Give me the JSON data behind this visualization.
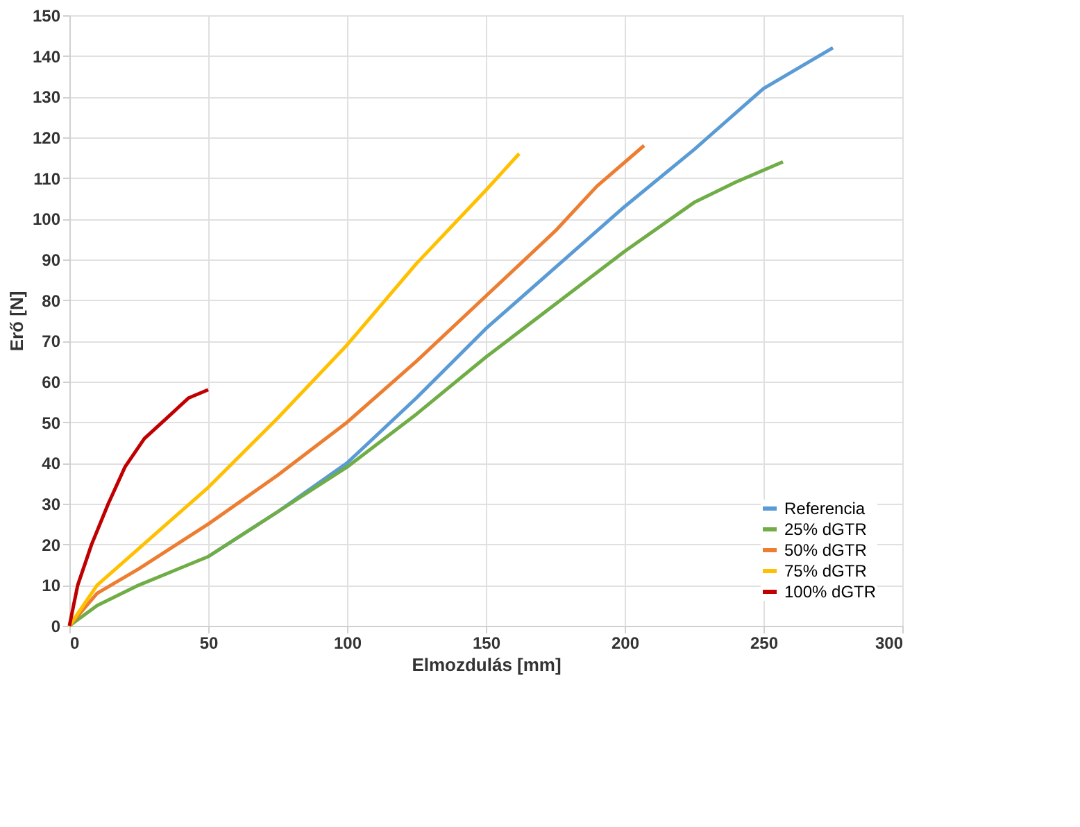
{
  "chart_data": {
    "type": "line",
    "xlabel": "Elmozdulás [mm]",
    "ylabel": "Erő [N]",
    "xlim": [
      0,
      300
    ],
    "xticks": [
      0,
      50,
      100,
      150,
      200,
      250,
      300
    ],
    "ylim": [
      0,
      150
    ],
    "yticks": [
      0,
      10,
      20,
      30,
      40,
      50,
      60,
      70,
      80,
      90,
      100,
      110,
      120,
      130,
      140,
      150
    ],
    "grid": true,
    "legend": "bottom right",
    "marker": "none",
    "line_style": "solid",
    "series": [
      {
        "name": "Referencia",
        "color": "#5b9bd5",
        "x": [
          50,
          75,
          100,
          125,
          150,
          175,
          200,
          225,
          250,
          275
        ],
        "values": [
          17,
          28,
          40,
          56,
          73,
          88,
          103,
          117,
          132,
          142
        ]
      },
      {
        "name": "25% dGTR",
        "color": "#70ad47",
        "x": [
          0,
          10,
          25,
          50,
          75,
          100,
          125,
          150,
          175,
          200,
          225,
          240,
          257
        ],
        "values": [
          0,
          5,
          10,
          17,
          28,
          39,
          52,
          66,
          79,
          92,
          104,
          109,
          114
        ]
      },
      {
        "name": "50% dGTR",
        "color": "#ed7d31",
        "x": [
          0,
          10,
          25,
          50,
          75,
          100,
          125,
          150,
          175,
          190,
          207
        ],
        "values": [
          0,
          8,
          14,
          25,
          37,
          50,
          65,
          81,
          97,
          108,
          118
        ]
      },
      {
        "name": "75% dGTR",
        "color": "#ffc000",
        "x": [
          0,
          10,
          25,
          50,
          75,
          100,
          125,
          150,
          162
        ],
        "values": [
          0,
          10,
          19,
          34,
          51,
          69,
          89,
          107,
          116
        ]
      },
      {
        "name": "100% dGTR",
        "color": "#c00000",
        "x": [
          0,
          3,
          8,
          14,
          20,
          27,
          35,
          43,
          50
        ],
        "values": [
          0,
          10,
          20,
          30,
          39,
          46,
          51,
          56,
          58
        ]
      }
    ]
  }
}
